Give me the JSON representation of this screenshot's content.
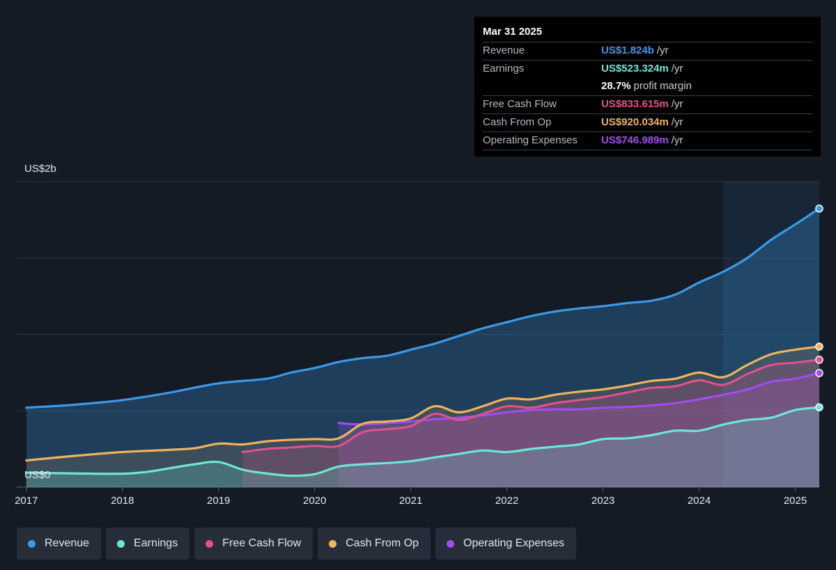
{
  "tooltip": {
    "date": "Mar 31 2025",
    "rows": [
      {
        "label": "Revenue",
        "value": "US$1.824b",
        "unit": "/yr",
        "color": "#3b9ae8"
      },
      {
        "label": "Earnings",
        "value": "US$523.324m",
        "unit": "/yr",
        "color": "#6ee7d6"
      },
      {
        "label": "",
        "value": "28.7%",
        "unit": "profit margin",
        "color": "#ffffff"
      },
      {
        "label": "Free Cash Flow",
        "value": "US$833.615m",
        "unit": "/yr",
        "color": "#e0508a"
      },
      {
        "label": "Cash From Op",
        "value": "US$920.034m",
        "unit": "/yr",
        "color": "#f0b45a"
      },
      {
        "label": "Operating Expenses",
        "value": "US$746.989m",
        "unit": "/yr",
        "color": "#a24cf0"
      }
    ]
  },
  "legend": [
    {
      "label": "Revenue",
      "color": "#3b9ae8"
    },
    {
      "label": "Earnings",
      "color": "#6ee7d6"
    },
    {
      "label": "Free Cash Flow",
      "color": "#e0508a"
    },
    {
      "label": "Cash From Op",
      "color": "#f0b45a"
    },
    {
      "label": "Operating Expenses",
      "color": "#a24cf0"
    }
  ],
  "chart_data": {
    "type": "area",
    "ylim": [
      0,
      2000
    ],
    "y_unit": "US$ millions",
    "y_tick_labels": [
      {
        "value": 2000,
        "label": "US$2b"
      },
      {
        "value": 0,
        "label": "US$0"
      }
    ],
    "x_ticks": [
      2017,
      2018,
      2019,
      2020,
      2021,
      2022,
      2023,
      2024,
      2025
    ],
    "xlim": [
      2016.9,
      2025.25
    ],
    "highlight_from": 2024.25,
    "series": [
      {
        "name": "Revenue",
        "color": "#3b9ae8",
        "x": [
          2017.0,
          2017.5,
          2018.0,
          2018.5,
          2019.0,
          2019.5,
          2019.75,
          2020.0,
          2020.25,
          2020.5,
          2020.75,
          2021.0,
          2021.25,
          2021.5,
          2021.75,
          2022.0,
          2022.25,
          2022.5,
          2022.75,
          2023.0,
          2023.25,
          2023.5,
          2023.75,
          2024.0,
          2024.25,
          2024.5,
          2024.75,
          2025.0,
          2025.25
        ],
        "y": [
          520,
          540,
          570,
          620,
          680,
          710,
          750,
          780,
          820,
          845,
          860,
          900,
          940,
          990,
          1040,
          1080,
          1120,
          1150,
          1170,
          1185,
          1205,
          1220,
          1260,
          1340,
          1410,
          1500,
          1620,
          1720,
          1824
        ]
      },
      {
        "name": "Operating Expenses",
        "color": "#a24cf0",
        "x": [
          2020.25,
          2020.5,
          2020.75,
          2021.0,
          2021.25,
          2021.5,
          2021.75,
          2022.0,
          2022.25,
          2022.5,
          2022.75,
          2023.0,
          2023.25,
          2023.5,
          2023.75,
          2024.0,
          2024.25,
          2024.5,
          2024.75,
          2025.0,
          2025.25
        ],
        "y": [
          420,
          410,
          420,
          430,
          445,
          455,
          470,
          490,
          505,
          510,
          510,
          520,
          525,
          535,
          550,
          575,
          605,
          640,
          690,
          710,
          747
        ]
      },
      {
        "name": "Cash From Op",
        "color": "#f0b45a",
        "x": [
          2017.0,
          2017.5,
          2018.0,
          2018.5,
          2018.75,
          2019.0,
          2019.25,
          2019.5,
          2019.75,
          2020.0,
          2020.25,
          2020.5,
          2020.75,
          2021.0,
          2021.25,
          2021.5,
          2021.75,
          2022.0,
          2022.25,
          2022.5,
          2022.75,
          2023.0,
          2023.25,
          2023.5,
          2023.75,
          2024.0,
          2024.25,
          2024.5,
          2024.75,
          2025.0,
          2025.25
        ],
        "y": [
          175,
          205,
          230,
          245,
          255,
          285,
          280,
          300,
          310,
          315,
          320,
          415,
          430,
          450,
          530,
          490,
          530,
          580,
          575,
          605,
          625,
          640,
          665,
          695,
          710,
          750,
          720,
          800,
          870,
          900,
          920
        ]
      },
      {
        "name": "Free Cash Flow",
        "color": "#e0508a",
        "x": [
          2019.25,
          2019.5,
          2019.75,
          2020.0,
          2020.25,
          2020.5,
          2020.75,
          2021.0,
          2021.25,
          2021.5,
          2021.75,
          2022.0,
          2022.25,
          2022.5,
          2022.75,
          2023.0,
          2023.25,
          2023.5,
          2023.75,
          2024.0,
          2024.25,
          2024.5,
          2024.75,
          2025.0,
          2025.25
        ],
        "y": [
          230,
          250,
          260,
          270,
          270,
          360,
          380,
          400,
          480,
          440,
          480,
          530,
          520,
          550,
          570,
          590,
          620,
          650,
          660,
          700,
          670,
          740,
          800,
          815,
          834
        ]
      },
      {
        "name": "Earnings",
        "color": "#6ee7d6",
        "x": [
          2017.0,
          2017.5,
          2018.0,
          2018.25,
          2018.5,
          2018.75,
          2019.0,
          2019.25,
          2019.5,
          2019.75,
          2020.0,
          2020.25,
          2020.5,
          2020.75,
          2021.0,
          2021.25,
          2021.5,
          2021.75,
          2022.0,
          2022.25,
          2022.5,
          2022.75,
          2023.0,
          2023.25,
          2023.5,
          2023.75,
          2024.0,
          2024.25,
          2024.5,
          2024.75,
          2025.0,
          2025.25
        ],
        "y": [
          95,
          90,
          88,
          100,
          125,
          150,
          165,
          115,
          90,
          75,
          85,
          135,
          150,
          158,
          170,
          195,
          218,
          240,
          230,
          250,
          265,
          280,
          315,
          320,
          340,
          370,
          370,
          410,
          440,
          455,
          505,
          523
        ]
      }
    ]
  }
}
